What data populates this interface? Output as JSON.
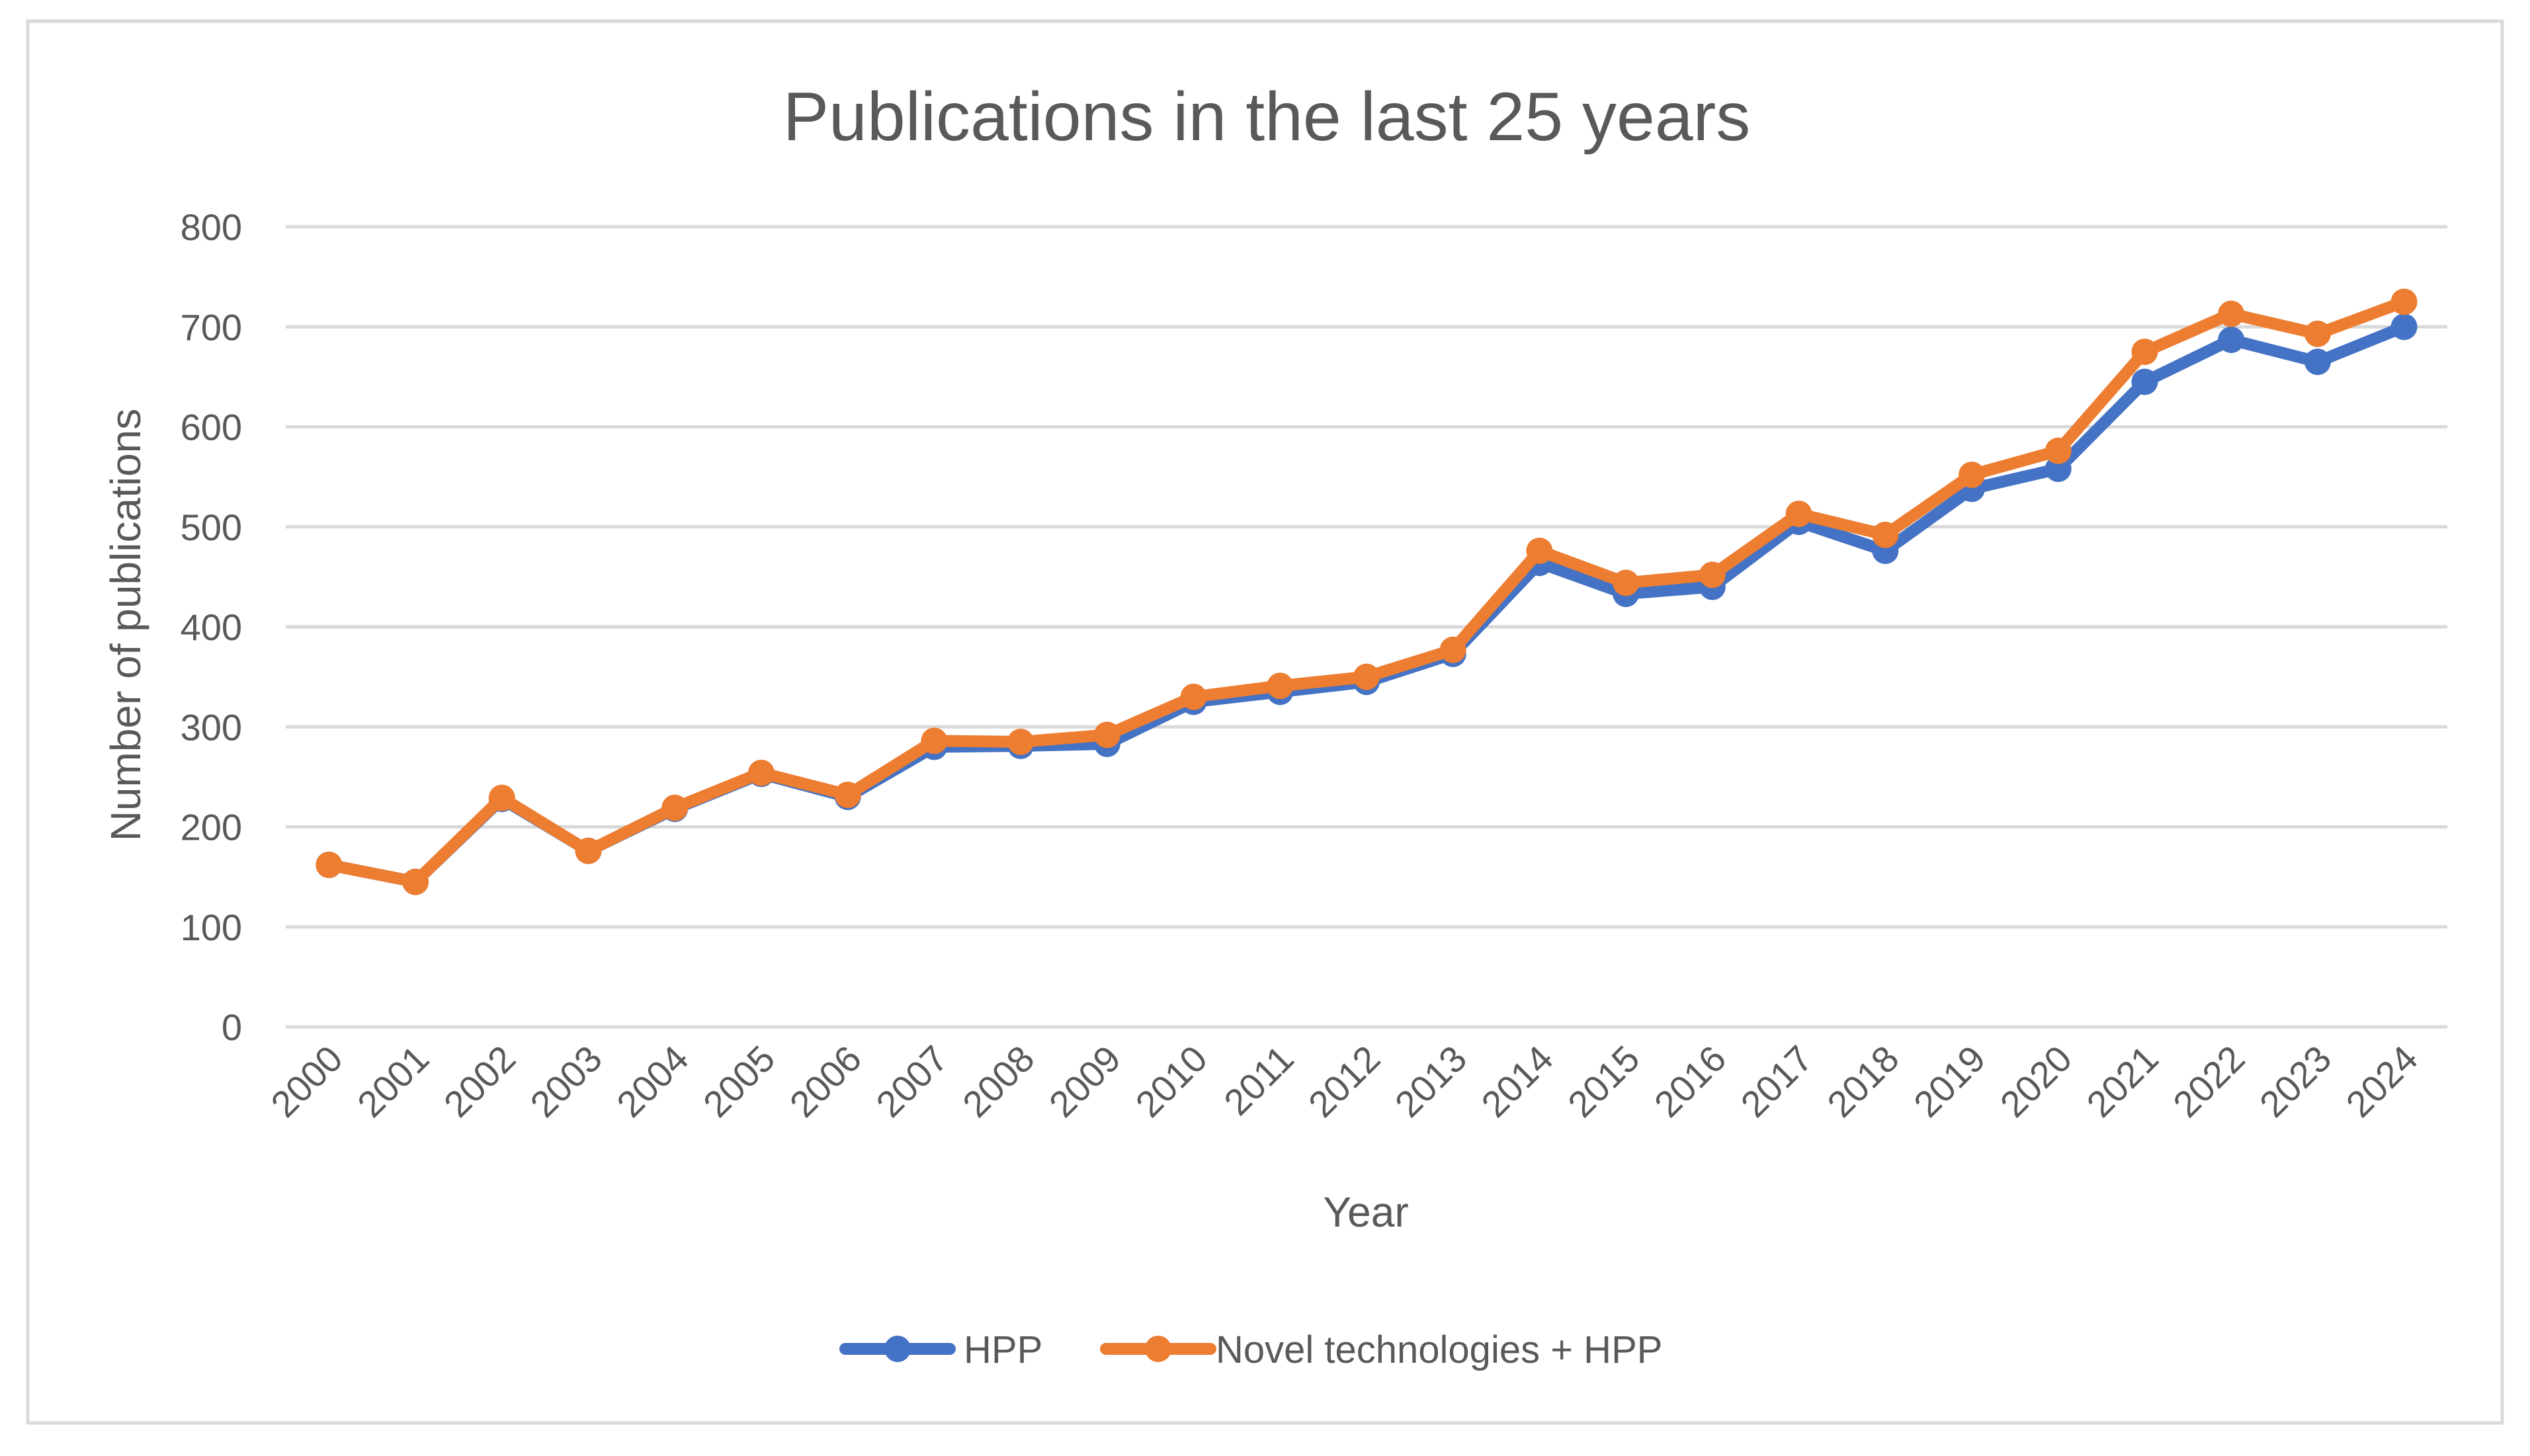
{
  "chart_data": {
    "type": "line",
    "title": "Publications in the last 25 years",
    "xlabel": "Year",
    "ylabel": "Number of publications",
    "ylim": [
      0,
      800
    ],
    "yticks": [
      0,
      100,
      200,
      300,
      400,
      500,
      600,
      700,
      800
    ],
    "grid": true,
    "legend_position": "bottom",
    "categories": [
      "2000",
      "2001",
      "2002",
      "2003",
      "2004",
      "2005",
      "2006",
      "2007",
      "2008",
      "2009",
      "2010",
      "2011",
      "2012",
      "2013",
      "2014",
      "2015",
      "2016",
      "2017",
      "2018",
      "2019",
      "2020",
      "2021",
      "2022",
      "2023",
      "2024"
    ],
    "series": [
      {
        "name": "HPP",
        "color": "#4472C4",
        "values": [
          162,
          145,
          228,
          176,
          218,
          253,
          230,
          280,
          281,
          283,
          325,
          335,
          345,
          373,
          464,
          433,
          440,
          505,
          476,
          538,
          558,
          645,
          687,
          665,
          700
        ]
      },
      {
        "name": "Novel technologies + HPP",
        "color": "#ED7D31",
        "values": [
          162,
          145,
          229,
          176,
          219,
          254,
          232,
          286,
          285,
          292,
          330,
          341,
          350,
          377,
          476,
          444,
          452,
          513,
          492,
          552,
          576,
          675,
          713,
          693,
          725
        ]
      }
    ]
  }
}
